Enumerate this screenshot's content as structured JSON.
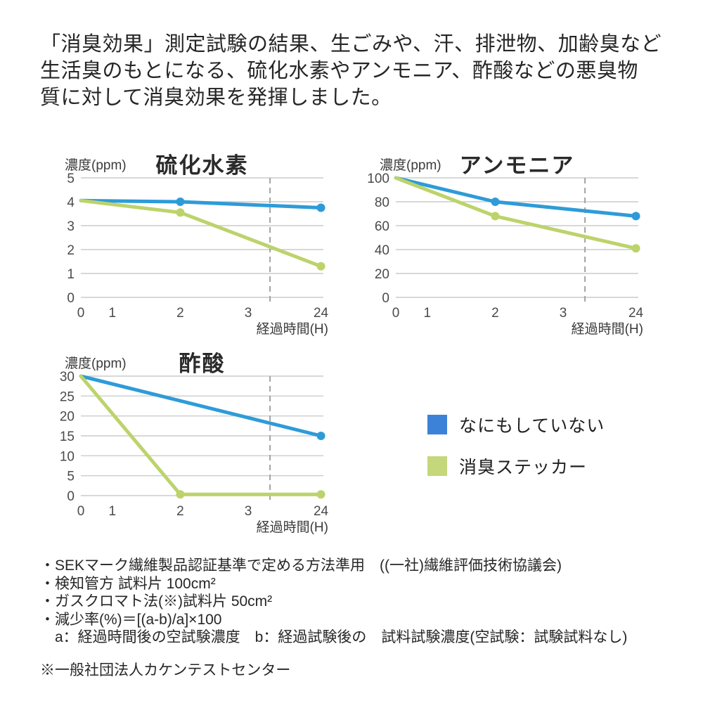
{
  "header": {
    "lines": [
      "「消臭効果」測定試験の結果、生ごみや、汗、排泄物、加齢臭など",
      "生活臭のもとになる、硫化水素やアンモニア、酢酸などの悪臭物",
      "質に対して消臭効果を発揮しました。"
    ]
  },
  "chart_data": [
    {
      "type": "line",
      "title": "硫化水素",
      "ylabel": "濃度(ppm)",
      "xlabel": "経過時間(H)",
      "x_ticks": [
        "0",
        "1",
        "2",
        "3",
        "24"
      ],
      "y_min": 0,
      "y_max": 5,
      "y_ticks": [
        5,
        4,
        3,
        2,
        1,
        0
      ],
      "grid": true,
      "dashed_line": true,
      "series": [
        {
          "name": "なにもしていない",
          "color": "#2E9BD8",
          "points": [
            {
              "x": 0,
              "y": 4.05,
              "marker": false
            },
            {
              "x": 2,
              "y": 4.0,
              "marker": true
            },
            {
              "x": 24,
              "y": 3.75,
              "marker": true
            }
          ]
        },
        {
          "name": "消臭ステッカー",
          "color": "#BCD36B",
          "points": [
            {
              "x": 0,
              "y": 4.05,
              "marker": false
            },
            {
              "x": 2,
              "y": 3.55,
              "marker": true
            },
            {
              "x": 24,
              "y": 1.3,
              "marker": true
            }
          ]
        }
      ]
    },
    {
      "type": "line",
      "title": "アンモニア",
      "ylabel": "濃度(ppm)",
      "xlabel": "経過時間(H)",
      "x_ticks": [
        "0",
        "1",
        "2",
        "3",
        "24"
      ],
      "y_min": 0,
      "y_max": 100,
      "y_ticks": [
        100,
        80,
        60,
        40,
        20,
        0
      ],
      "grid": true,
      "dashed_line": true,
      "series": [
        {
          "name": "なにもしていない",
          "color": "#2E9BD8",
          "points": [
            {
              "x": 0,
              "y": 100,
              "marker": false
            },
            {
              "x": 2,
              "y": 80,
              "marker": true
            },
            {
              "x": 24,
              "y": 68,
              "marker": true
            }
          ]
        },
        {
          "name": "消臭ステッカー",
          "color": "#BCD36B",
          "points": [
            {
              "x": 0,
              "y": 100,
              "marker": false
            },
            {
              "x": 2,
              "y": 68,
              "marker": true
            },
            {
              "x": 24,
              "y": 41,
              "marker": true
            }
          ]
        }
      ]
    },
    {
      "type": "line",
      "title": "酢酸",
      "ylabel": "濃度(ppm)",
      "xlabel": "経過時間(H)",
      "x_ticks": [
        "0",
        "1",
        "2",
        "3",
        "24"
      ],
      "y_min": 0,
      "y_max": 30,
      "y_ticks": [
        30,
        25,
        20,
        15,
        10,
        5,
        0
      ],
      "grid": true,
      "dashed_line": true,
      "series": [
        {
          "name": "なにもしていない",
          "color": "#2E9BD8",
          "points": [
            {
              "x": 0,
              "y": 30,
              "marker": false
            },
            {
              "x": 24,
              "y": 15,
              "marker": true
            }
          ]
        },
        {
          "name": "消臭ステッカー",
          "color": "#BCD36B",
          "points": [
            {
              "x": 0,
              "y": 30,
              "marker": false
            },
            {
              "x": 2,
              "y": 0.3,
              "marker": true
            },
            {
              "x": 24,
              "y": 0.3,
              "marker": true
            }
          ]
        }
      ]
    }
  ],
  "legend": {
    "items": [
      {
        "label": "なにもしていない",
        "color": "#3C82D8"
      },
      {
        "label": "消臭ステッカー",
        "color": "#C4D77B"
      }
    ]
  },
  "footnotes": {
    "lines": [
      "・SEKマーク繊維製品認証基準で定める方法準用　((一社)繊維評価技術協議会)",
      "・検知管方 試料片 100cm²",
      "・ガスクロマト法(※)試料片 50cm²",
      "・減少率(%)＝[(a-b)/a]×100",
      "a：経過時間後の空試験濃度　b：経過試験後の　試料試験濃度(空試験：試験試料なし)"
    ],
    "note": "※一般社団法人カケンテストセンター"
  },
  "colors": {
    "line_blue": "#2E9BD8",
    "line_green": "#BCD36B",
    "legend_blue": "#3C82D8",
    "legend_green": "#C4D77B",
    "gridline": "#CCCCCC",
    "dashed_line": "#A3A3A3",
    "tick_text": "#4A4A4A"
  }
}
